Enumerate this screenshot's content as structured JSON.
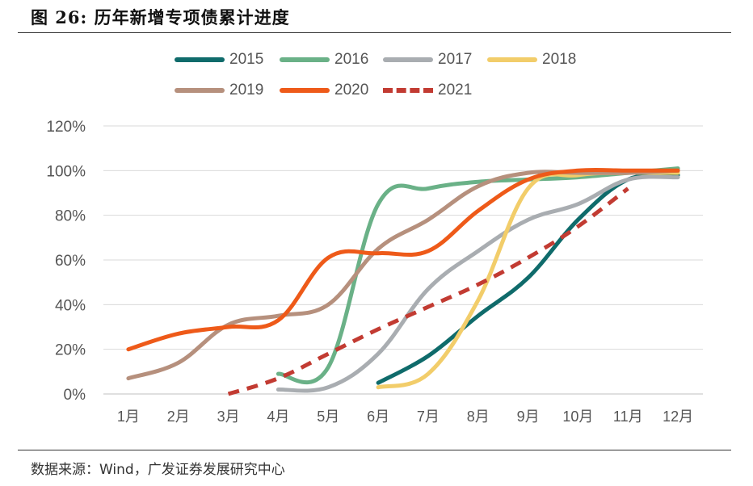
{
  "figure": {
    "title": "图 26: 历年新增专项债累计进度",
    "source": "数据来源：Wind，广发证券发展研究中心"
  },
  "chart_data": {
    "type": "line",
    "title": "",
    "xlabel": "",
    "ylabel": "",
    "categories": [
      "1月",
      "2月",
      "3月",
      "4月",
      "5月",
      "6月",
      "7月",
      "8月",
      "9月",
      "10月",
      "11月",
      "12月"
    ],
    "y_ticks": [
      "0%",
      "20%",
      "40%",
      "60%",
      "80%",
      "100%",
      "120%"
    ],
    "ylim": [
      0,
      120
    ],
    "grid": "horizontal",
    "legend_position": "top",
    "series": [
      {
        "name": "2015",
        "color": "#0f6b6b",
        "dashed": false,
        "points": [
          [
            6,
            5
          ],
          [
            7,
            17
          ],
          [
            8,
            35
          ],
          [
            9,
            52
          ],
          [
            10,
            78
          ],
          [
            11,
            96
          ],
          [
            12,
            98
          ]
        ]
      },
      {
        "name": "2016",
        "color": "#6ab187",
        "dashed": false,
        "points": [
          [
            4,
            9
          ],
          [
            5,
            12
          ],
          [
            6,
            85
          ],
          [
            7,
            92
          ],
          [
            8,
            95
          ],
          [
            9,
            96
          ],
          [
            10,
            97
          ],
          [
            11,
            99
          ],
          [
            12,
            101
          ]
        ]
      },
      {
        "name": "2017",
        "color": "#a9adb1",
        "dashed": false,
        "points": [
          [
            4,
            2
          ],
          [
            5,
            3
          ],
          [
            6,
            18
          ],
          [
            7,
            47
          ],
          [
            8,
            64
          ],
          [
            9,
            78
          ],
          [
            10,
            85
          ],
          [
            11,
            96
          ],
          [
            12,
            97
          ]
        ]
      },
      {
        "name": "2018",
        "color": "#f2cd6a",
        "dashed": false,
        "points": [
          [
            6,
            3
          ],
          [
            7,
            9
          ],
          [
            8,
            42
          ],
          [
            9,
            92
          ],
          [
            10,
            98
          ],
          [
            11,
            99
          ],
          [
            12,
            99
          ]
        ]
      },
      {
        "name": "2019",
        "color": "#b6907d",
        "dashed": false,
        "points": [
          [
            1,
            7
          ],
          [
            2,
            14
          ],
          [
            3,
            31
          ],
          [
            4,
            35
          ],
          [
            5,
            40
          ],
          [
            6,
            65
          ],
          [
            7,
            78
          ],
          [
            8,
            93
          ],
          [
            9,
            99
          ],
          [
            10,
            99
          ],
          [
            11,
            99
          ],
          [
            12,
            100
          ]
        ]
      },
      {
        "name": "2020",
        "color": "#ee5a19",
        "dashed": false,
        "points": [
          [
            1,
            20
          ],
          [
            2,
            27
          ],
          [
            3,
            30
          ],
          [
            4,
            33
          ],
          [
            5,
            61
          ],
          [
            6,
            63
          ],
          [
            7,
            64
          ],
          [
            8,
            82
          ],
          [
            9,
            96
          ],
          [
            10,
            100
          ],
          [
            11,
            100
          ],
          [
            12,
            100
          ]
        ]
      },
      {
        "name": "2021",
        "color": "#c23b32",
        "dashed": true,
        "points": [
          [
            3,
            0
          ],
          [
            4,
            7
          ],
          [
            5,
            18
          ],
          [
            6,
            29
          ],
          [
            7,
            39
          ],
          [
            8,
            49
          ],
          [
            9,
            61
          ],
          [
            10,
            75
          ],
          [
            11,
            92
          ]
        ]
      }
    ]
  }
}
